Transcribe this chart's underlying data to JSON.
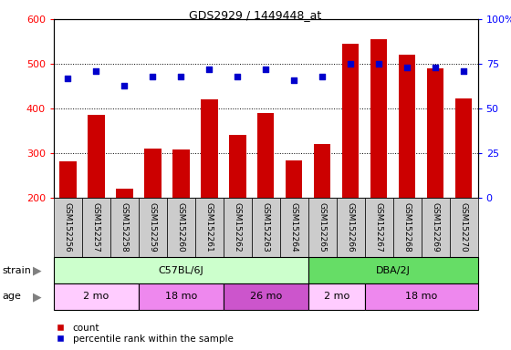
{
  "title": "GDS2929 / 1449448_at",
  "samples": [
    "GSM152256",
    "GSM152257",
    "GSM152258",
    "GSM152259",
    "GSM152260",
    "GSM152261",
    "GSM152262",
    "GSM152263",
    "GSM152264",
    "GSM152265",
    "GSM152266",
    "GSM152267",
    "GSM152268",
    "GSM152269",
    "GSM152270"
  ],
  "bar_values": [
    282,
    385,
    220,
    311,
    309,
    420,
    340,
    390,
    283,
    320,
    545,
    555,
    520,
    490,
    422
  ],
  "dot_values_pct": [
    67,
    71,
    63,
    68,
    68,
    72,
    68,
    72,
    66,
    68,
    75,
    75,
    73,
    73,
    71
  ],
  "bar_color": "#cc0000",
  "dot_color": "#0000cc",
  "left_ylim": [
    200,
    600
  ],
  "left_yticks": [
    200,
    300,
    400,
    500,
    600
  ],
  "right_ylim": [
    0,
    100
  ],
  "right_yticks": [
    0,
    25,
    50,
    75,
    100
  ],
  "right_yticklabels": [
    "0",
    "25",
    "50",
    "75",
    "100%"
  ],
  "strain_groups": [
    {
      "label": "C57BL/6J",
      "start": 0,
      "end": 9,
      "color": "#ccffcc"
    },
    {
      "label": "DBA/2J",
      "start": 9,
      "end": 15,
      "color": "#66dd66"
    }
  ],
  "age_groups": [
    {
      "label": "2 mo",
      "start": 0,
      "end": 3,
      "color": "#ffccff"
    },
    {
      "label": "18 mo",
      "start": 3,
      "end": 6,
      "color": "#ee88ee"
    },
    {
      "label": "26 mo",
      "start": 6,
      "end": 9,
      "color": "#cc55cc"
    },
    {
      "label": "2 mo",
      "start": 9,
      "end": 11,
      "color": "#ffccff"
    },
    {
      "label": "18 mo",
      "start": 11,
      "end": 15,
      "color": "#ee88ee"
    }
  ],
  "bg_color": "#ffffff",
  "xtick_bg_color": "#cccccc",
  "legend_count_label": "count",
  "legend_pct_label": "percentile rank within the sample"
}
